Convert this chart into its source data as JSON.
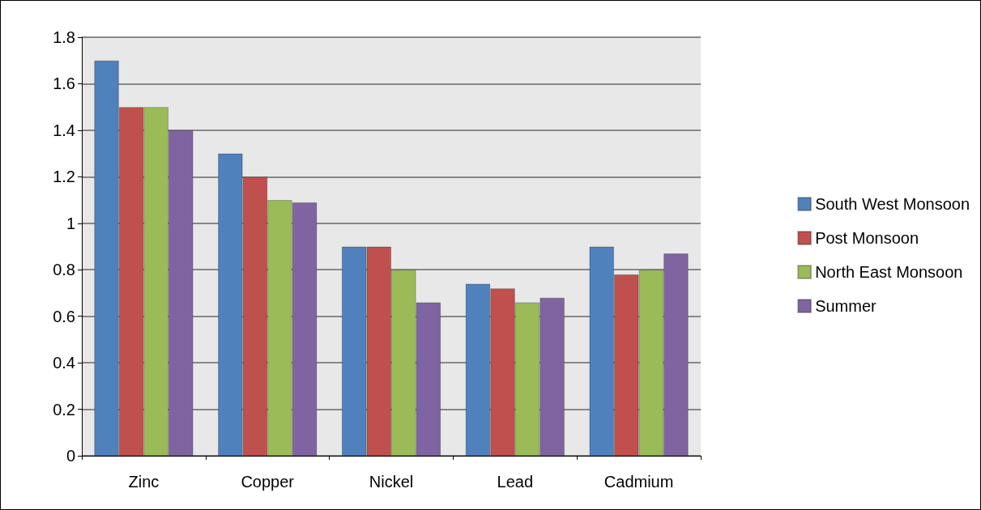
{
  "chart_data": {
    "type": "bar",
    "categories": [
      "Zinc",
      "Copper",
      "Nickel",
      "Lead",
      "Cadmium"
    ],
    "series": [
      {
        "name": "South West Monsoon",
        "color": "#4f81bd",
        "values": [
          1.7,
          1.3,
          0.9,
          0.74,
          0.9
        ]
      },
      {
        "name": "Post Monsoon",
        "color": "#c0504d",
        "values": [
          1.5,
          1.2,
          0.9,
          0.72,
          0.78
        ]
      },
      {
        "name": "North East Monsoon",
        "color": "#9bbb59",
        "values": [
          1.5,
          1.1,
          0.8,
          0.66,
          0.8
        ]
      },
      {
        "name": "Summer",
        "color": "#8064a2",
        "values": [
          1.4,
          1.09,
          0.66,
          0.68,
          0.87
        ]
      }
    ],
    "ylim": [
      0,
      1.8
    ],
    "yticks": [
      0,
      0.2,
      0.4,
      0.6,
      0.8,
      1,
      1.2,
      1.4,
      1.6,
      1.8
    ],
    "grid": "y",
    "legend": "right"
  }
}
